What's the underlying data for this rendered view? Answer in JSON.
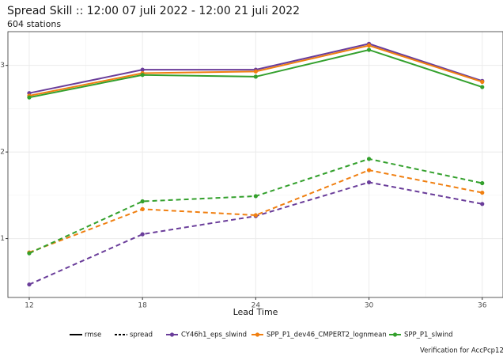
{
  "chart_data": {
    "type": "line",
    "title": "Spread Skill :: 12:00 07 juli 2022 - 12:00 21 juli 2022",
    "subtitle": "604 stations",
    "x_label": "Lead Time",
    "caption": "Verification for AccPcp12h",
    "x": [
      12,
      18,
      24,
      30,
      36
    ],
    "xlim": [
      10.87,
      37.1
    ],
    "xticks": [
      12,
      18,
      24,
      30,
      36
    ],
    "xminor_ticks": [
      15,
      21,
      27,
      33
    ],
    "ylim": [
      0.32,
      3.39
    ],
    "yticks": [
      1,
      2,
      3
    ],
    "yminor_ticks": [
      1.5,
      2.5
    ],
    "grid": true,
    "line_types": [
      "rmse",
      "spread"
    ],
    "series": [
      {
        "name": "CY46h1_eps_slwind",
        "color": "#6a3d9a",
        "rmse": [
          2.68,
          2.95,
          2.95,
          3.25,
          2.82
        ],
        "spread": [
          0.47,
          1.05,
          1.26,
          1.65,
          1.4
        ]
      },
      {
        "name": "SPP_P1_dev46_CMPERT2_lognmean",
        "color": "#f07f10",
        "rmse": [
          2.65,
          2.91,
          2.93,
          3.23,
          2.81
        ],
        "spread": [
          0.84,
          1.34,
          1.27,
          1.79,
          1.53
        ]
      },
      {
        "name": "SPP_P1_slwind",
        "color": "#33a02c",
        "rmse": [
          2.63,
          2.89,
          2.87,
          3.18,
          2.75
        ],
        "spread": [
          0.83,
          1.43,
          1.49,
          1.92,
          1.64
        ]
      }
    ]
  }
}
